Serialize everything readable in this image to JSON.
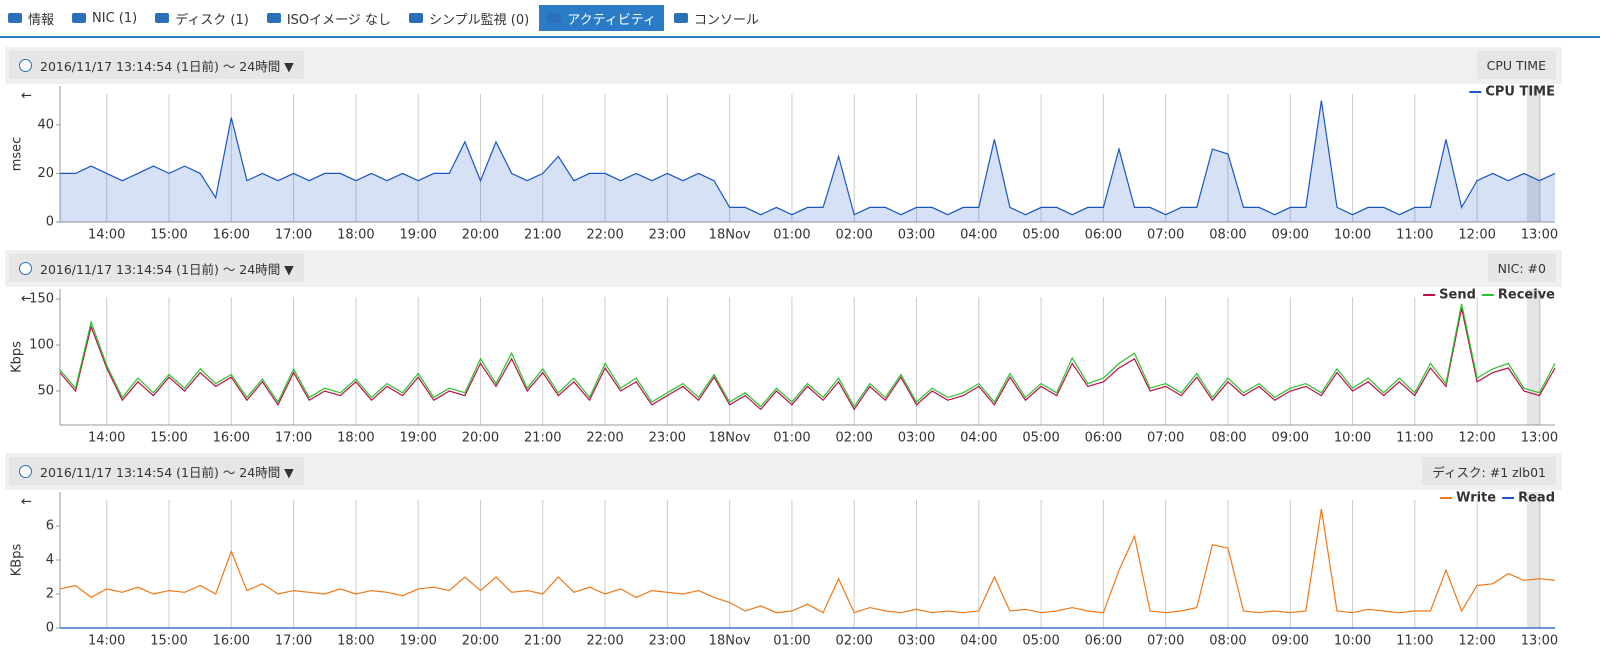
{
  "tabs": [
    "情報",
    "NIC (1)",
    "ディスク (1)",
    "ISOイメージ なし",
    "シンプル監視 (0)",
    "アクティビティ",
    "コンソール"
  ],
  "active_tab": 5,
  "panels": [
    {
      "range": "2016/11/17 13:14:54 (1日前) 〜 24時間 ▼",
      "label": "CPU TIME"
    },
    {
      "range": "2016/11/17 13:14:54 (1日前) 〜 24時間 ▼",
      "label": "NIC: #0"
    },
    {
      "range": "2016/11/17 13:14:54 (1日前) 〜 24時間 ▼",
      "label": "ディスク: #1 zlb01"
    }
  ],
  "chart_data": [
    {
      "type": "line",
      "ylabel": "msec",
      "area": true,
      "grid": true,
      "legend": "upper right",
      "x": [
        13.25,
        13.5,
        13.75,
        14,
        14.25,
        14.5,
        14.75,
        15,
        15.25,
        15.5,
        15.75,
        16,
        16.25,
        16.5,
        16.75,
        17,
        17.25,
        17.5,
        17.75,
        18,
        18.25,
        18.5,
        18.75,
        19,
        19.25,
        19.5,
        19.75,
        20,
        20.25,
        20.5,
        20.75,
        21,
        21.25,
        21.5,
        21.75,
        22,
        22.25,
        22.5,
        22.75,
        23,
        23.25,
        23.5,
        23.75,
        24,
        24.25,
        24.5,
        24.75,
        25,
        25.25,
        25.5,
        25.75,
        26,
        26.25,
        26.5,
        26.75,
        27,
        27.25,
        27.5,
        27.75,
        28,
        28.25,
        28.5,
        28.75,
        29,
        29.25,
        29.5,
        29.75,
        30,
        30.25,
        30.5,
        30.75,
        31,
        31.25,
        31.5,
        31.75,
        32,
        32.25,
        32.5,
        32.75,
        33,
        33.25,
        33.5,
        33.75,
        34,
        34.25,
        34.5,
        34.75,
        35,
        35.25,
        35.5,
        35.75,
        36,
        36.25,
        36.5,
        36.75,
        37,
        37.25
      ],
      "xlim": [
        13.25,
        37.25
      ],
      "xticks": [
        {
          "value": 14,
          "label": "14:00"
        },
        {
          "value": 15,
          "label": "15:00"
        },
        {
          "value": 16,
          "label": "16:00"
        },
        {
          "value": 17,
          "label": "17:00"
        },
        {
          "value": 18,
          "label": "18:00"
        },
        {
          "value": 19,
          "label": "19:00"
        },
        {
          "value": 20,
          "label": "20:00"
        },
        {
          "value": 21,
          "label": "21:00"
        },
        {
          "value": 22,
          "label": "22:00"
        },
        {
          "value": 23,
          "label": "23:00"
        },
        {
          "value": 24,
          "label": "18Nov"
        },
        {
          "value": 25,
          "label": "01:00"
        },
        {
          "value": 26,
          "label": "02:00"
        },
        {
          "value": 27,
          "label": "03:00"
        },
        {
          "value": 28,
          "label": "04:00"
        },
        {
          "value": 29,
          "label": "05:00"
        },
        {
          "value": 30,
          "label": "06:00"
        },
        {
          "value": 31,
          "label": "07:00"
        },
        {
          "value": 32,
          "label": "08:00"
        },
        {
          "value": 33,
          "label": "09:00"
        },
        {
          "value": 34,
          "label": "10:00"
        },
        {
          "value": 35,
          "label": "11:00"
        },
        {
          "value": 36,
          "label": "12:00"
        },
        {
          "value": 37,
          "label": "13:00"
        }
      ],
      "ylim": [
        0,
        56
      ],
      "yticks": [
        0,
        20,
        40
      ],
      "series": [
        {
          "name": "CPU TIME",
          "color": "#1a56c8",
          "values": [
            20,
            20,
            23,
            20,
            17,
            20,
            23,
            20,
            23,
            20,
            10,
            43,
            17,
            20,
            17,
            20,
            17,
            20,
            20,
            17,
            20,
            17,
            20,
            17,
            20,
            20,
            33,
            17,
            33,
            20,
            17,
            20,
            27,
            17,
            20,
            20,
            17,
            20,
            17,
            20,
            17,
            20,
            17,
            6,
            6,
            3,
            6,
            3,
            6,
            6,
            27,
            3,
            6,
            6,
            3,
            6,
            6,
            3,
            6,
            6,
            34,
            6,
            3,
            6,
            6,
            3,
            6,
            6,
            30,
            6,
            6,
            3,
            6,
            6,
            30,
            28,
            6,
            6,
            3,
            6,
            6,
            50,
            6,
            3,
            6,
            6,
            3,
            6,
            6,
            34,
            6,
            17,
            20,
            17,
            20,
            17,
            20
          ]
        }
      ]
    },
    {
      "type": "line",
      "ylabel": "Kbps",
      "area": false,
      "grid": true,
      "legend": "upper right",
      "x": [
        13.25,
        13.5,
        13.75,
        14,
        14.25,
        14.5,
        14.75,
        15,
        15.25,
        15.5,
        15.75,
        16,
        16.25,
        16.5,
        16.75,
        17,
        17.25,
        17.5,
        17.75,
        18,
        18.25,
        18.5,
        18.75,
        19,
        19.25,
        19.5,
        19.75,
        20,
        20.25,
        20.5,
        20.75,
        21,
        21.25,
        21.5,
        21.75,
        22,
        22.25,
        22.5,
        22.75,
        23,
        23.25,
        23.5,
        23.75,
        24,
        24.25,
        24.5,
        24.75,
        25,
        25.25,
        25.5,
        25.75,
        26,
        26.25,
        26.5,
        26.75,
        27,
        27.25,
        27.5,
        27.75,
        28,
        28.25,
        28.5,
        28.75,
        29,
        29.25,
        29.5,
        29.75,
        30,
        30.25,
        30.5,
        30.75,
        31,
        31.25,
        31.5,
        31.75,
        32,
        32.25,
        32.5,
        32.75,
        33,
        33.25,
        33.5,
        33.75,
        34,
        34.25,
        34.5,
        34.75,
        35,
        35.25,
        35.5,
        35.75,
        36,
        36.25,
        36.5,
        36.75,
        37,
        37.25
      ],
      "xlim": [
        13.25,
        37.25
      ],
      "xticks": [
        {
          "value": 14,
          "label": "14:00"
        },
        {
          "value": 15,
          "label": "15:00"
        },
        {
          "value": 16,
          "label": "16:00"
        },
        {
          "value": 17,
          "label": "17:00"
        },
        {
          "value": 18,
          "label": "18:00"
        },
        {
          "value": 19,
          "label": "19:00"
        },
        {
          "value": 20,
          "label": "20:00"
        },
        {
          "value": 21,
          "label": "21:00"
        },
        {
          "value": 22,
          "label": "22:00"
        },
        {
          "value": 23,
          "label": "23:00"
        },
        {
          "value": 24,
          "label": "18Nov"
        },
        {
          "value": 25,
          "label": "01:00"
        },
        {
          "value": 26,
          "label": "02:00"
        },
        {
          "value": 27,
          "label": "03:00"
        },
        {
          "value": 28,
          "label": "04:00"
        },
        {
          "value": 29,
          "label": "05:00"
        },
        {
          "value": 30,
          "label": "06:00"
        },
        {
          "value": 31,
          "label": "07:00"
        },
        {
          "value": 32,
          "label": "08:00"
        },
        {
          "value": 33,
          "label": "09:00"
        },
        {
          "value": 34,
          "label": "10:00"
        },
        {
          "value": 35,
          "label": "11:00"
        },
        {
          "value": 36,
          "label": "12:00"
        },
        {
          "value": 37,
          "label": "13:00"
        }
      ],
      "ylim": [
        13,
        161
      ],
      "yticks": [
        50,
        100,
        150
      ],
      "series": [
        {
          "name": "Send",
          "color": "#b8104a",
          "values": [
            70,
            50,
            120,
            75,
            40,
            60,
            45,
            65,
            50,
            70,
            55,
            65,
            40,
            60,
            35,
            70,
            40,
            50,
            45,
            60,
            40,
            55,
            45,
            65,
            40,
            50,
            45,
            80,
            55,
            85,
            50,
            70,
            45,
            60,
            40,
            75,
            50,
            60,
            35,
            45,
            55,
            40,
            65,
            35,
            45,
            30,
            50,
            35,
            55,
            40,
            60,
            30,
            55,
            40,
            65,
            35,
            50,
            40,
            45,
            55,
            35,
            65,
            40,
            55,
            45,
            80,
            55,
            60,
            75,
            85,
            50,
            55,
            45,
            65,
            40,
            60,
            45,
            55,
            40,
            50,
            55,
            45,
            70,
            50,
            60,
            45,
            60,
            45,
            75,
            55,
            140,
            60,
            70,
            75,
            50,
            45,
            75
          ]
        },
        {
          "name": "Receive",
          "color": "#2cc22c",
          "values": [
            73,
            53,
            125,
            78,
            43,
            64,
            48,
            68,
            53,
            74,
            58,
            68,
            43,
            63,
            38,
            74,
            43,
            53,
            48,
            63,
            43,
            58,
            48,
            69,
            43,
            53,
            48,
            85,
            58,
            91,
            53,
            74,
            48,
            64,
            43,
            80,
            53,
            64,
            38,
            48,
            58,
            43,
            68,
            38,
            48,
            33,
            53,
            38,
            58,
            43,
            64,
            33,
            58,
            43,
            68,
            38,
            53,
            43,
            48,
            58,
            38,
            69,
            43,
            58,
            48,
            86,
            58,
            64,
            80,
            91,
            53,
            58,
            48,
            69,
            43,
            64,
            48,
            58,
            43,
            53,
            58,
            48,
            74,
            53,
            64,
            48,
            64,
            48,
            80,
            58,
            145,
            64,
            74,
            80,
            53,
            48,
            80
          ]
        }
      ]
    },
    {
      "type": "line",
      "ylabel": "KBps",
      "area": false,
      "grid": true,
      "legend": "upper right",
      "x": [
        13.25,
        13.5,
        13.75,
        14,
        14.25,
        14.5,
        14.75,
        15,
        15.25,
        15.5,
        15.75,
        16,
        16.25,
        16.5,
        16.75,
        17,
        17.25,
        17.5,
        17.75,
        18,
        18.25,
        18.5,
        18.75,
        19,
        19.25,
        19.5,
        19.75,
        20,
        20.25,
        20.5,
        20.75,
        21,
        21.25,
        21.5,
        21.75,
        22,
        22.25,
        22.5,
        22.75,
        23,
        23.25,
        23.5,
        23.75,
        24,
        24.25,
        24.5,
        24.75,
        25,
        25.25,
        25.5,
        25.75,
        26,
        26.25,
        26.5,
        26.75,
        27,
        27.25,
        27.5,
        27.75,
        28,
        28.25,
        28.5,
        28.75,
        29,
        29.25,
        29.5,
        29.75,
        30,
        30.25,
        30.5,
        30.75,
        31,
        31.25,
        31.5,
        31.75,
        32,
        32.25,
        32.5,
        32.75,
        33,
        33.25,
        33.5,
        33.75,
        34,
        34.25,
        34.5,
        34.75,
        35,
        35.25,
        35.5,
        35.75,
        36,
        36.25,
        36.5,
        36.75,
        37,
        37.25
      ],
      "xlim": [
        13.25,
        37.25
      ],
      "xticks": [
        {
          "value": 14,
          "label": "14:00"
        },
        {
          "value": 15,
          "label": "15:00"
        },
        {
          "value": 16,
          "label": "16:00"
        },
        {
          "value": 17,
          "label": "17:00"
        },
        {
          "value": 18,
          "label": "18:00"
        },
        {
          "value": 19,
          "label": "19:00"
        },
        {
          "value": 20,
          "label": "20:00"
        },
        {
          "value": 21,
          "label": "21:00"
        },
        {
          "value": 22,
          "label": "22:00"
        },
        {
          "value": 23,
          "label": "23:00"
        },
        {
          "value": 24,
          "label": "18Nov"
        },
        {
          "value": 25,
          "label": "01:00"
        },
        {
          "value": 26,
          "label": "02:00"
        },
        {
          "value": 27,
          "label": "03:00"
        },
        {
          "value": 28,
          "label": "04:00"
        },
        {
          "value": 29,
          "label": "05:00"
        },
        {
          "value": 30,
          "label": "06:00"
        },
        {
          "value": 31,
          "label": "07:00"
        },
        {
          "value": 32,
          "label": "08:00"
        },
        {
          "value": 33,
          "label": "09:00"
        },
        {
          "value": 34,
          "label": "10:00"
        },
        {
          "value": 35,
          "label": "11:00"
        },
        {
          "value": 36,
          "label": "12:00"
        },
        {
          "value": 37,
          "label": "13:00"
        }
      ],
      "ylim": [
        0,
        8
      ],
      "yticks": [
        0,
        2,
        4,
        6
      ],
      "series": [
        {
          "name": "Write",
          "color": "#f07818",
          "values": [
            2.3,
            2.5,
            1.8,
            2.3,
            2.1,
            2.4,
            2.0,
            2.2,
            2.1,
            2.5,
            2.0,
            4.5,
            2.2,
            2.6,
            2.0,
            2.2,
            2.1,
            2.0,
            2.3,
            2.0,
            2.2,
            2.1,
            1.9,
            2.3,
            2.4,
            2.2,
            3.0,
            2.2,
            3.0,
            2.1,
            2.2,
            2.0,
            3.0,
            2.1,
            2.4,
            2.0,
            2.3,
            1.8,
            2.2,
            2.1,
            2.0,
            2.2,
            1.8,
            1.5,
            1.0,
            1.3,
            0.9,
            1.0,
            1.4,
            0.9,
            2.9,
            0.9,
            1.2,
            1.0,
            0.9,
            1.1,
            0.9,
            1.0,
            0.9,
            1.0,
            3.0,
            1.0,
            1.1,
            0.9,
            1.0,
            1.2,
            1.0,
            0.9,
            3.4,
            5.4,
            1.0,
            0.9,
            1.0,
            1.2,
            4.9,
            4.7,
            1.0,
            0.9,
            1.0,
            0.9,
            1.0,
            7.0,
            1.0,
            0.9,
            1.1,
            1.0,
            0.9,
            1.0,
            1.0,
            3.4,
            1.0,
            2.5,
            2.6,
            3.2,
            2.8,
            2.9,
            2.8
          ]
        },
        {
          "name": "Read",
          "color": "#1a56c8",
          "values": [
            0,
            0,
            0,
            0,
            0,
            0,
            0,
            0,
            0,
            0,
            0,
            0,
            0,
            0,
            0,
            0,
            0,
            0,
            0,
            0,
            0,
            0,
            0,
            0,
            0,
            0,
            0,
            0,
            0,
            0,
            0,
            0,
            0,
            0,
            0,
            0,
            0,
            0,
            0,
            0,
            0,
            0,
            0,
            0,
            0,
            0,
            0,
            0,
            0,
            0,
            0,
            0,
            0,
            0,
            0,
            0,
            0,
            0,
            0,
            0,
            0,
            0,
            0,
            0,
            0,
            0,
            0,
            0,
            0,
            0,
            0,
            0,
            0,
            0,
            0,
            0,
            0,
            0,
            0,
            0,
            0,
            0,
            0,
            0,
            0,
            0,
            0,
            0,
            0,
            0,
            0,
            0,
            0,
            0,
            0,
            0,
            0
          ]
        }
      ]
    }
  ]
}
